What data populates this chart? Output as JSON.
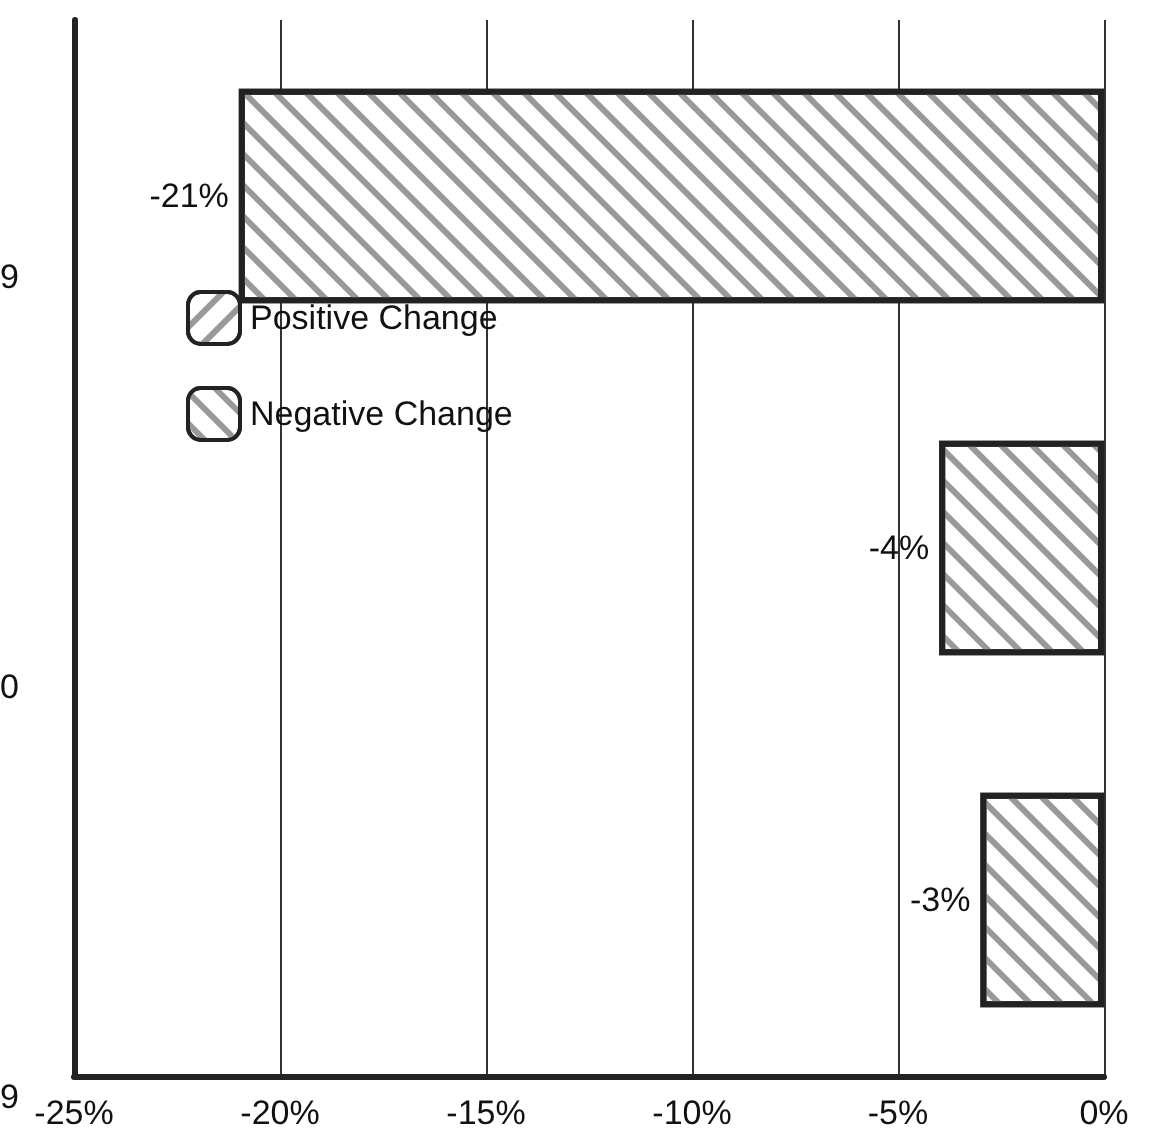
{
  "chart_data": {
    "type": "bar",
    "orientation": "horizontal",
    "categories": [
      null,
      null,
      null
    ],
    "series": [
      {
        "name": "Positive Change",
        "color": "#ffffff",
        "values": [
          null,
          null,
          null
        ]
      },
      {
        "name": "Negative Change",
        "color": "#ffffff",
        "values": [
          -21,
          -4,
          -3
        ],
        "value_labels": [
          "-21%",
          "-4%",
          "-3%"
        ]
      }
    ],
    "xlim": [
      -25,
      0
    ],
    "xticks": [
      {
        "value": -25,
        "label": "-25%"
      },
      {
        "value": -20,
        "label": "-20%"
      },
      {
        "value": -15,
        "label": "-15%"
      },
      {
        "value": -10,
        "label": "-10%"
      },
      {
        "value": -5,
        "label": "-5%"
      },
      {
        "value": 0,
        "label": "0%"
      }
    ],
    "grid": "x",
    "legend": "top left",
    "annotations": [
      "9",
      "0",
      "9"
    ]
  }
}
